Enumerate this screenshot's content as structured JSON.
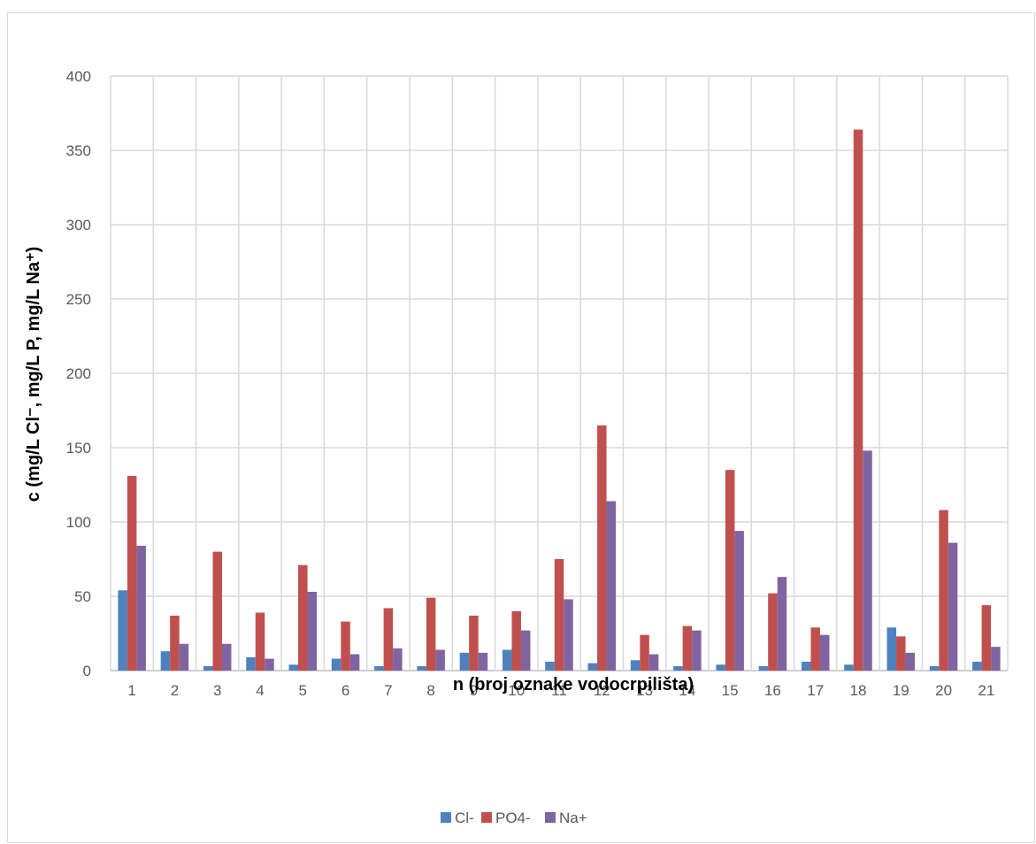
{
  "chart_data": {
    "type": "bar",
    "title": "",
    "xlabel": "n (broj oznake vodocrpilišta)",
    "ylabel": "c (mg/L Cl⁻, mg/L P, mg/L Na⁺)",
    "ylim": [
      0,
      400
    ],
    "yticks": [
      0,
      50,
      100,
      150,
      200,
      250,
      300,
      350,
      400
    ],
    "grid": true,
    "legend_position": "bottom",
    "categories": [
      "1",
      "2",
      "3",
      "4",
      "5",
      "6",
      "7",
      "8",
      "9",
      "10",
      "11",
      "12",
      "13",
      "14",
      "15",
      "16",
      "17",
      "18",
      "19",
      "20",
      "21"
    ],
    "series": [
      {
        "name": "Cl-",
        "color": "#4f81bd",
        "values": [
          54,
          13,
          3,
          9,
          4,
          8,
          3,
          3,
          12,
          14,
          6,
          5,
          7,
          3,
          4,
          3,
          6,
          4,
          29,
          3,
          6
        ]
      },
      {
        "name": "PO4-",
        "color": "#c0504d",
        "values": [
          131,
          37,
          80,
          39,
          71,
          33,
          42,
          49,
          37,
          40,
          75,
          165,
          24,
          30,
          135,
          52,
          29,
          364,
          23,
          108,
          44
        ]
      },
      {
        "name": "Na+",
        "color": "#8064a2",
        "values": [
          84,
          18,
          18,
          8,
          53,
          11,
          15,
          14,
          12,
          27,
          48,
          114,
          11,
          27,
          94,
          63,
          24,
          148,
          12,
          86,
          16
        ]
      }
    ]
  }
}
